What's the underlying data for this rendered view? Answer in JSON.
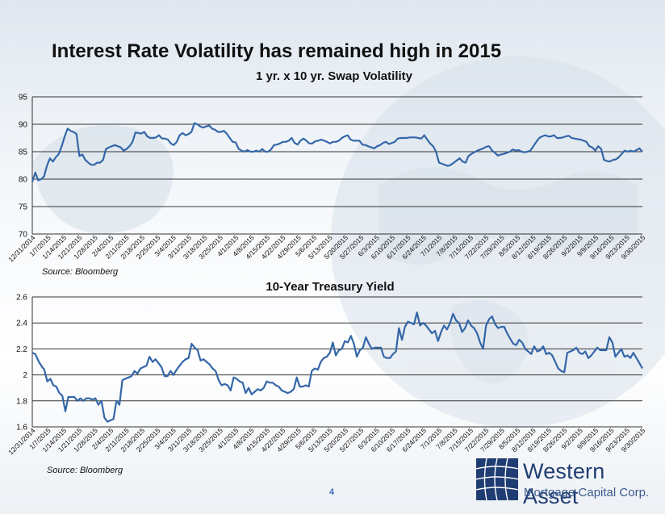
{
  "page": {
    "title": "Interest Rate Volatility has remained high in 2015",
    "page_number": "4",
    "logo": {
      "name": "Western Asset",
      "subtitle": "Mortgage Capital Corp."
    }
  },
  "colors": {
    "line": "#3467a8",
    "grid": "#333333"
  },
  "chart_data": [
    {
      "type": "line",
      "title": "1 yr. x 10 yr. Swap Volatility",
      "source": "Source: Bloomberg",
      "xlabel": "",
      "ylabel": "",
      "ylim": [
        70,
        95
      ],
      "yticks": [
        70,
        75,
        80,
        85,
        90,
        95
      ],
      "grid": true,
      "xticks": [
        "12/31/2014",
        "1/7/2015",
        "1/14/2015",
        "1/21/2015",
        "1/28/2015",
        "2/4/2015",
        "2/11/2015",
        "2/18/2015",
        "2/25/2015",
        "3/4/2015",
        "3/11/2015",
        "3/18/2015",
        "3/25/2015",
        "4/1/2015",
        "4/8/2015",
        "4/15/2015",
        "4/22/2015",
        "4/29/2015",
        "5/6/2015",
        "5/13/2015",
        "5/20/2015",
        "5/27/2015",
        "6/3/2015",
        "6/10/2015",
        "6/17/2015",
        "6/24/2015",
        "7/1/2015",
        "7/8/2015",
        "7/15/2015",
        "7/22/2015",
        "7/29/2015",
        "8/5/2015",
        "8/12/2015",
        "8/19/2015",
        "8/26/2015",
        "9/2/2015",
        "9/9/2015",
        "9/16/2015",
        "9/23/2015",
        "9/30/2015"
      ],
      "series": [
        {
          "values": [
            79.5,
            81.2,
            79.8,
            80.0,
            80.5,
            82.5,
            83.8,
            83.2,
            84.0,
            84.6,
            86.0,
            87.8,
            89.2,
            88.8,
            88.6,
            88.2,
            84.2,
            84.5,
            83.5,
            83.0,
            82.6,
            82.6,
            83.0,
            83.0,
            83.5,
            85.5,
            85.8,
            86.0,
            86.2,
            86.0,
            85.8,
            85.2,
            85.5,
            86.0,
            86.8,
            88.5,
            88.4,
            88.3,
            88.6,
            87.8,
            87.5,
            87.5,
            87.6,
            88.0,
            87.4,
            87.4,
            87.2,
            86.5,
            86.2,
            86.8,
            88.0,
            88.4,
            88.0,
            88.2,
            88.6,
            90.2,
            90.0,
            89.6,
            89.4,
            89.6,
            89.8,
            89.2,
            89.0,
            88.6,
            88.6,
            88.8,
            88.3,
            87.5,
            86.8,
            86.7,
            85.5,
            85.2,
            85.0,
            85.3,
            85.0,
            85.0,
            85.2,
            85.0,
            85.5,
            85.0,
            85.0,
            85.4,
            86.2,
            86.3,
            86.5,
            86.8,
            86.8,
            87.0,
            87.5,
            86.6,
            86.3,
            87.0,
            87.4,
            87.0,
            86.5,
            86.5,
            86.9,
            87.0,
            87.2,
            87.0,
            86.8,
            86.5,
            86.8,
            86.8,
            87.0,
            87.5,
            87.8,
            88.0,
            87.2,
            87.0,
            87.0,
            87.0,
            86.3,
            86.2,
            86.0,
            85.8,
            85.6,
            86.0,
            86.2,
            86.6,
            86.8,
            86.4,
            86.6,
            86.8,
            87.4,
            87.5,
            87.5,
            87.5,
            87.6,
            87.6,
            87.6,
            87.5,
            87.4,
            88.0,
            87.2,
            86.5,
            86.0,
            85.0,
            83.0,
            82.8,
            82.6,
            82.4,
            82.6,
            83.0,
            83.4,
            83.8,
            83.2,
            83.0,
            84.2,
            84.6,
            84.9,
            85.2,
            85.4,
            85.6,
            85.9,
            86.0,
            85.2,
            84.8,
            84.3,
            84.5,
            84.6,
            84.8,
            85.0,
            85.4,
            85.2,
            85.3,
            85.0,
            84.9,
            85.0,
            85.2,
            86.0,
            86.8,
            87.5,
            87.8,
            88.0,
            87.8,
            87.8,
            88.0,
            87.5,
            87.5,
            87.6,
            87.8,
            87.9,
            87.5,
            87.4,
            87.3,
            87.2,
            87.0,
            86.8,
            86.0,
            85.8,
            85.2,
            86.0,
            85.5,
            83.5,
            83.3,
            83.2,
            83.5,
            83.6,
            84.0,
            84.6,
            85.2,
            85.0,
            85.2,
            85.0,
            85.3,
            85.6,
            85.0
          ]
        }
      ]
    },
    {
      "type": "line",
      "title": "10-Year Treasury Yield",
      "source": "Source: Bloomberg",
      "xlabel": "",
      "ylabel": "",
      "ylim": [
        1.6,
        2.6
      ],
      "yticks": [
        1.6,
        1.8,
        2.0,
        2.2,
        2.4,
        2.6
      ],
      "ytick_labels": [
        "1.6",
        "1.8",
        "2",
        "2.2",
        "2.4",
        "2.6"
      ],
      "grid": true,
      "xticks": [
        "12/31/2014",
        "1/7/2015",
        "1/14/2015",
        "1/21/2015",
        "1/28/2015",
        "2/4/2015",
        "2/11/2015",
        "2/18/2015",
        "2/25/2015",
        "3/4/2015",
        "3/11/2015",
        "3/18/2015",
        "3/25/2015",
        "4/1/2015",
        "4/8/2015",
        "4/15/2015",
        "4/22/2015",
        "4/29/2015",
        "5/6/2015",
        "5/13/2015",
        "5/20/2015",
        "5/27/2015",
        "6/3/2015",
        "6/10/2015",
        "6/17/2015",
        "6/24/2015",
        "7/1/2015",
        "7/8/2015",
        "7/15/2015",
        "7/22/2015",
        "7/29/2015",
        "8/5/2015",
        "8/12/2015",
        "8/19/2015",
        "8/26/2015",
        "9/2/2015",
        "9/9/2015",
        "9/16/2015",
        "9/23/2015",
        "9/30/2015"
      ],
      "series": [
        {
          "values": [
            2.17,
            2.16,
            2.11,
            2.07,
            2.04,
            1.95,
            1.97,
            1.92,
            1.91,
            1.86,
            1.84,
            1.72,
            1.83,
            1.83,
            1.83,
            1.8,
            1.82,
            1.8,
            1.82,
            1.82,
            1.81,
            1.82,
            1.77,
            1.8,
            1.67,
            1.64,
            1.65,
            1.66,
            1.8,
            1.77,
            1.96,
            1.97,
            1.98,
            1.99,
            2.03,
            2.01,
            2.05,
            2.06,
            2.07,
            2.14,
            2.1,
            2.12,
            2.09,
            2.06,
            1.99,
            1.99,
            2.03,
            2.0,
            2.04,
            2.07,
            2.1,
            2.12,
            2.13,
            2.24,
            2.21,
            2.19,
            2.11,
            2.12,
            2.1,
            2.08,
            2.05,
            2.03,
            1.96,
            1.92,
            1.93,
            1.92,
            1.88,
            1.98,
            1.97,
            1.95,
            1.94,
            1.86,
            1.9,
            1.85,
            1.87,
            1.89,
            1.88,
            1.9,
            1.95,
            1.94,
            1.94,
            1.92,
            1.91,
            1.88,
            1.87,
            1.86,
            1.87,
            1.89,
            1.98,
            1.91,
            1.91,
            1.92,
            1.91,
            2.03,
            2.05,
            2.04,
            2.1,
            2.13,
            2.14,
            2.17,
            2.25,
            2.15,
            2.19,
            2.2,
            2.26,
            2.25,
            2.3,
            2.24,
            2.14,
            2.19,
            2.21,
            2.29,
            2.24,
            2.2,
            2.21,
            2.21,
            2.21,
            2.14,
            2.13,
            2.13,
            2.16,
            2.18,
            2.36,
            2.27,
            2.37,
            2.41,
            2.4,
            2.39,
            2.48,
            2.38,
            2.4,
            2.38,
            2.35,
            2.32,
            2.34,
            2.26,
            2.33,
            2.38,
            2.35,
            2.4,
            2.47,
            2.42,
            2.4,
            2.33,
            2.36,
            2.42,
            2.38,
            2.36,
            2.32,
            2.25,
            2.2,
            2.38,
            2.43,
            2.45,
            2.39,
            2.36,
            2.37,
            2.37,
            2.32,
            2.28,
            2.24,
            2.23,
            2.27,
            2.25,
            2.2,
            2.18,
            2.16,
            2.22,
            2.18,
            2.19,
            2.22,
            2.16,
            2.17,
            2.15,
            2.1,
            2.05,
            2.03,
            2.02,
            2.17,
            2.18,
            2.19,
            2.21,
            2.17,
            2.16,
            2.18,
            2.13,
            2.15,
            2.18,
            2.21,
            2.19,
            2.19,
            2.19,
            2.29,
            2.25,
            2.14,
            2.17,
            2.2,
            2.14,
            2.15,
            2.13,
            2.17,
            2.13,
            2.09,
            2.05
          ]
        }
      ]
    }
  ]
}
